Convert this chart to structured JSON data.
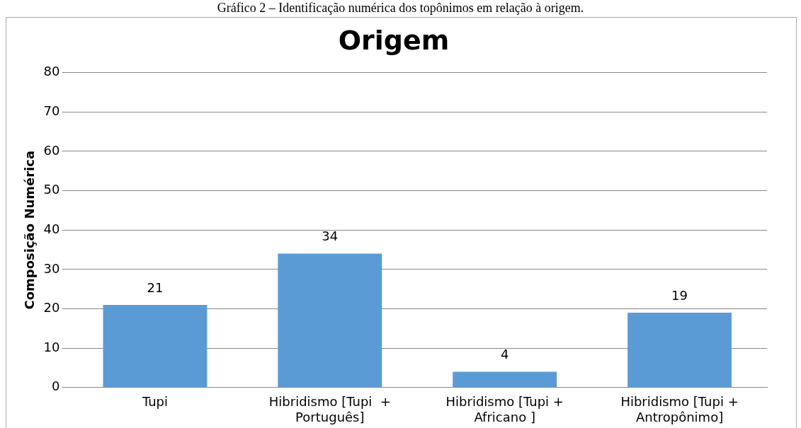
{
  "chart_data": {
    "type": "bar",
    "title": "Origem",
    "annotations": [
      "Gráfico 2 – Identificação numérica dos topônimos em relação à origem."
    ],
    "ylabel": "Composição Numérica",
    "categories": [
      "Tupi",
      "Hibridismo [Tupi  + Português]",
      "Hibridismo [Tupi + Africano ]",
      "Hibridismo [Tupi + Antropônimo]"
    ],
    "values": [
      21,
      34,
      4,
      19
    ],
    "color": "#5b9bd5",
    "ylim": [
      0,
      80
    ],
    "yticks": [
      0,
      10,
      20,
      30,
      40,
      50,
      60,
      70,
      80
    ],
    "grid": "y",
    "data_labels": true
  }
}
